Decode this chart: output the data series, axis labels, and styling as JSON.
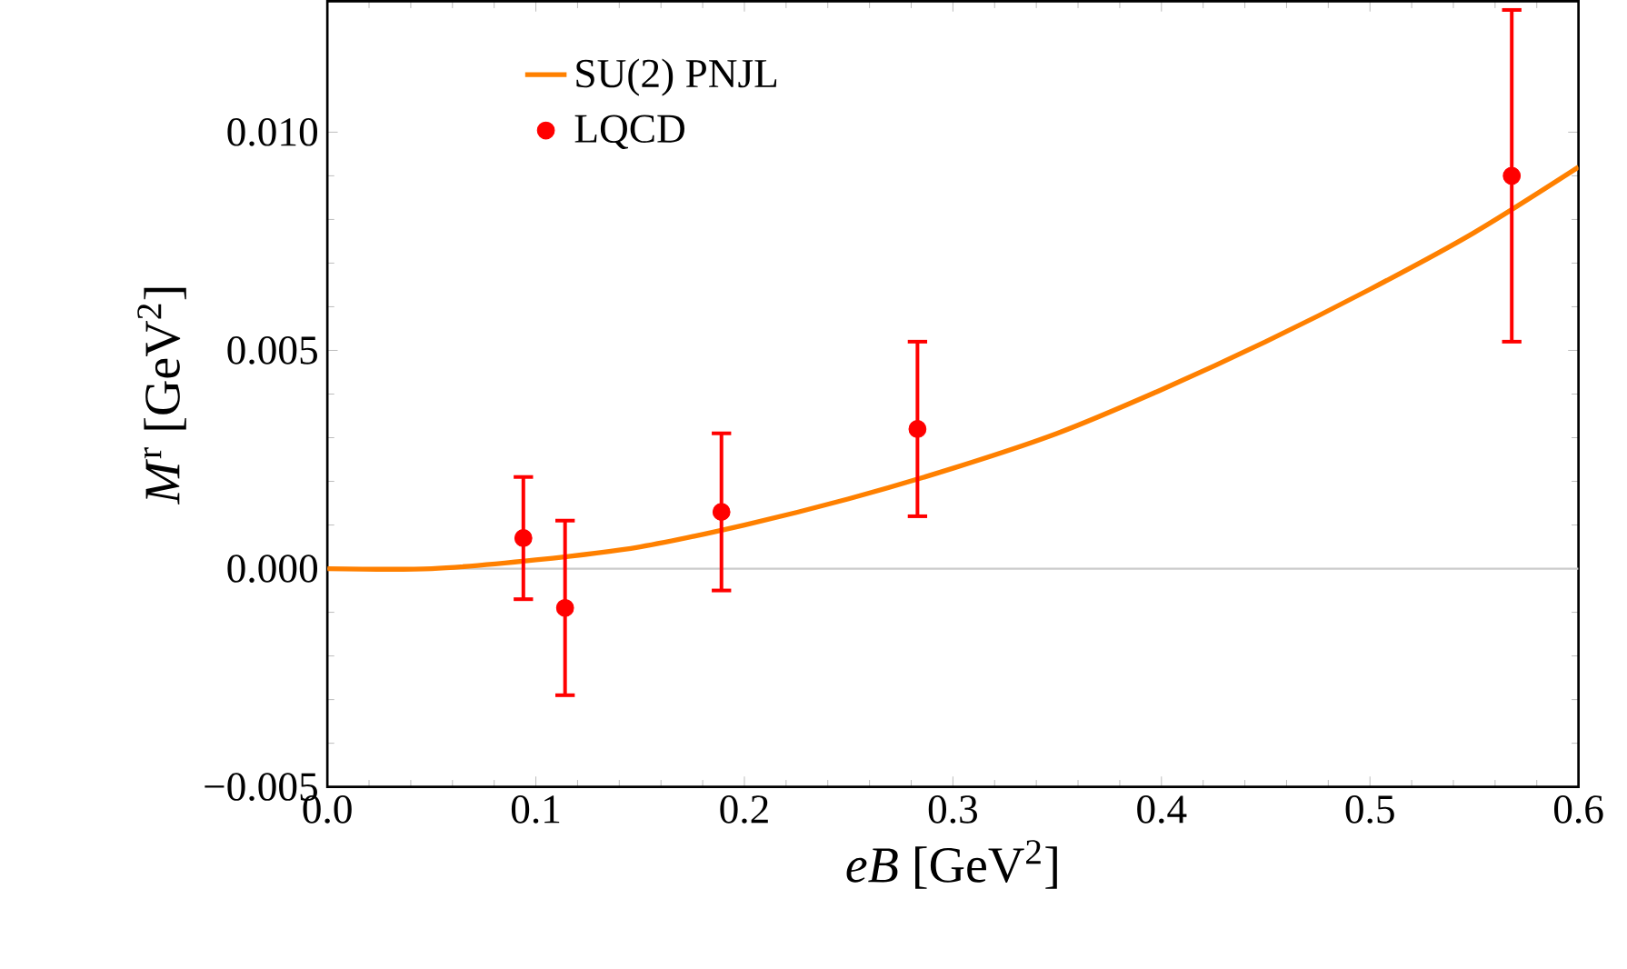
{
  "chart_data": {
    "type": "scatter",
    "xlabel": "*eB* [GeV$^{2}$]",
    "ylabel": "*M*$^{r}$ [GeV$^{2}$]",
    "xlim": [
      0,
      0.6
    ],
    "ylim": [
      -0.005,
      0.013
    ],
    "xticks": [
      {
        "value": 0,
        "label": "0.0"
      },
      0.1,
      0.2,
      0.3,
      0.4,
      0.5,
      0.6
    ],
    "yticks": [
      {
        "value": -0.005,
        "label": "−0.005"
      },
      {
        "value": 0,
        "label": "0.000"
      },
      0.005,
      {
        "value": 0.01,
        "label": "0.010"
      }
    ],
    "legend": "top left",
    "grid": false,
    "ref_lines": [
      {
        "axis": "y",
        "value": 0,
        "color": "#cccccc"
      }
    ],
    "series": [
      {
        "name": "SU(2) PNJL",
        "type": "line",
        "color": "#ff8000",
        "marker": "none",
        "x": [
          0,
          0.05,
          0.1,
          0.15,
          0.2,
          0.25,
          0.3,
          0.35,
          0.4,
          0.45,
          0.5,
          0.55,
          0.6
        ],
        "values": [
          0,
          0.0,
          0.0002,
          0.0005,
          0.001,
          0.0016,
          0.0023,
          0.0031,
          0.0041,
          0.0052,
          0.0064,
          0.0077,
          0.0092
        ]
      },
      {
        "name": "LQCD",
        "color": "#ff0000",
        "marker": "circle",
        "x": [
          0.094,
          0.114,
          0.189,
          0.283,
          0.568
        ],
        "values": [
          0.0007,
          -0.0009,
          0.0013,
          0.0032,
          0.009
        ],
        "errors": [
          0.0014,
          0.002,
          0.0018,
          0.002,
          0.0038
        ]
      }
    ]
  }
}
